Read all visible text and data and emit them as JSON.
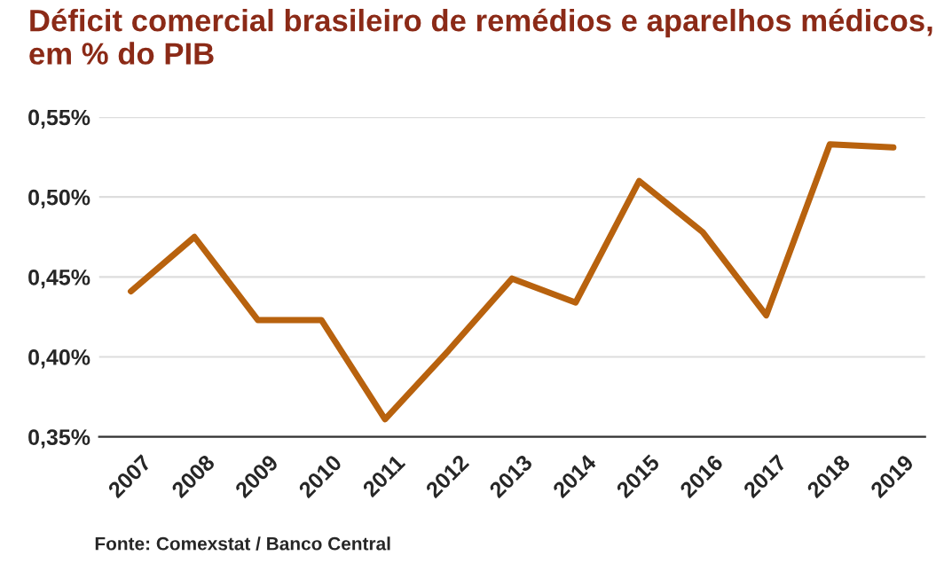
{
  "chart_data": {
    "type": "line",
    "title": "Déficit comercial brasileiro de remédios e aparelhos médicos, em % do PIB",
    "categories": [
      "2007",
      "2008",
      "2009",
      "2010",
      "2011",
      "2012",
      "2013",
      "2014",
      "2015",
      "2016",
      "2017",
      "2018",
      "2019"
    ],
    "series": [
      {
        "color": "#b8620e",
        "values": [
          0.441,
          0.475,
          0.423,
          0.423,
          0.361,
          0.404,
          0.449,
          0.434,
          0.51,
          0.478,
          0.426,
          0.533,
          0.531
        ]
      }
    ],
    "ylim": [
      0.35,
      0.55
    ],
    "yticks": [
      {
        "value": 0.35,
        "label": "0,35%"
      },
      {
        "value": 0.4,
        "label": "0,40%"
      },
      {
        "value": 0.45,
        "label": "0,45%"
      },
      {
        "value": 0.5,
        "label": "0,50%"
      },
      {
        "value": 0.55,
        "label": "0,55%"
      }
    ],
    "grid": "y",
    "legend": false,
    "marker": "none",
    "line_style": "solid",
    "annotations": [
      "Fonte: Comexstat / Banco Central"
    ]
  }
}
